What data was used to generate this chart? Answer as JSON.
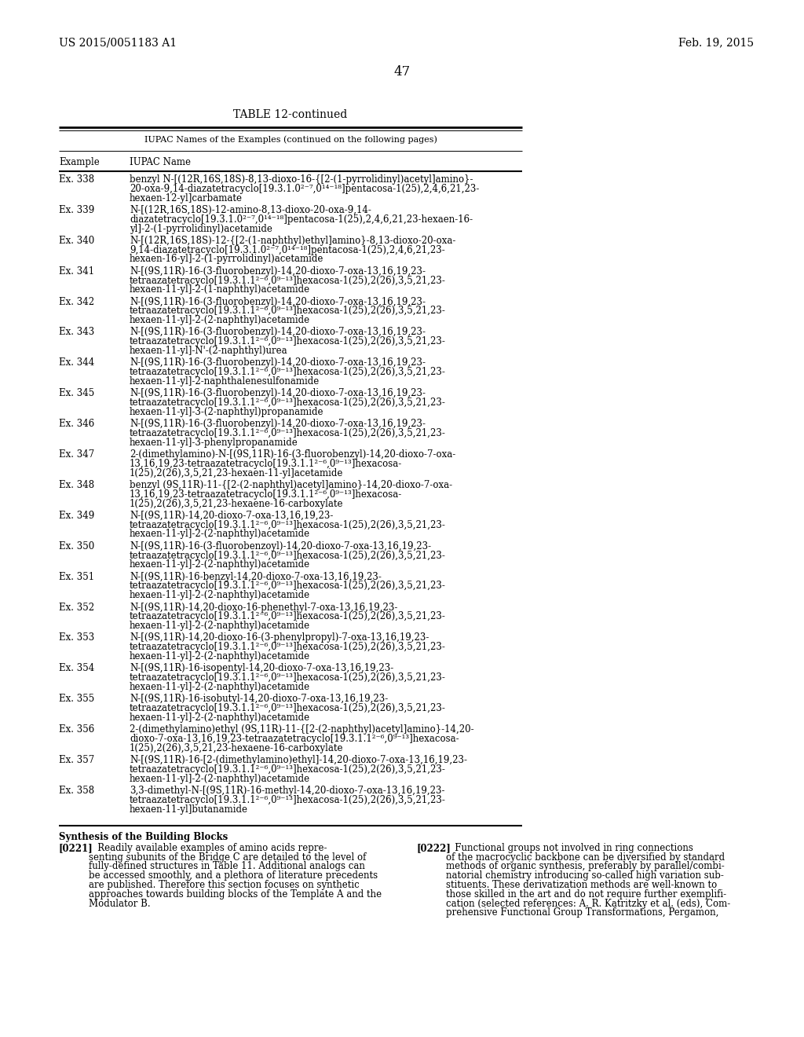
{
  "background_color": "#ffffff",
  "header_left": "US 2015/0051183 A1",
  "header_right": "Feb. 19, 2015",
  "page_number": "47",
  "table_title": "TABLE 12-continued",
  "table_subtitle": "IUPAC Names of the Examples (continued on the following pages)",
  "col1_header": "Example",
  "col2_header": "IUPAC Name",
  "entries": [
    {
      "example": "Ex. 338",
      "lines": [
        "benzyl N-[(12R,16S,18S)-8,13-dioxo-16-{[2-(1-pyrrolidinyl)acetyl]amino}-",
        "20-oxa-9,14-diazatetracyclo[19.3.1.0²⁻⁷,0¹⁴⁻¹⁸]pentacosa-1(25),2,4,6,21,23-",
        "hexaen-12-yl]carbamate"
      ]
    },
    {
      "example": "Ex. 339",
      "lines": [
        "N-[(12R,16S,18S)-12-amino-8,13-dioxo-20-oxa-9,14-",
        "diazatetracyclo[19.3.1.0²⁻⁷,0¹⁴⁻¹⁸]pentacosa-1(25),2,4,6,21,23-hexaen-16-",
        "yl]-2-(1-pyrrolidinyl)acetamide"
      ]
    },
    {
      "example": "Ex. 340",
      "lines": [
        "N-[(12R,16S,18S)-12-{[2-(1-naphthyl)ethyl]amino}-8,13-dioxo-20-oxa-",
        "9,14-diazatetracyclo[19.3.1.0²⁻⁷,0¹⁴⁻¹⁸]pentacosa-1(25),2,4,6,21,23-",
        "hexaen-16-yl]-2-(1-pyrrolidinyl)acetamide"
      ]
    },
    {
      "example": "Ex. 341",
      "lines": [
        "N-[(9S,11R)-16-(3-fluorobenzyl)-14,20-dioxo-7-oxa-13,16,19,23-",
        "tetraazatetracyclo[19.3.1.1²⁻⁶,0⁹⁻¹³]hexacosa-1(25),2(26),3,5,21,23-",
        "hexaen-11-yl]-2-(1-naphthyl)acetamide"
      ]
    },
    {
      "example": "Ex. 342",
      "lines": [
        "N-[(9S,11R)-16-(3-fluorobenzyl)-14,20-dioxo-7-oxa-13,16,19,23-",
        "tetraazatetracyclo[19.3.1.1²⁻⁶,0⁹⁻¹³]hexacosa-1(25),2(26),3,5,21,23-",
        "hexaen-11-yl]-2-(2-naphthyl)acetamide"
      ]
    },
    {
      "example": "Ex. 343",
      "lines": [
        "N-[(9S,11R)-16-(3-fluorobenzyl)-14,20-dioxo-7-oxa-13,16,19,23-",
        "tetraazatetracyclo[19.3.1.1²⁻⁶,0⁹⁻¹³]hexacosa-1(25),2(26),3,5,21,23-",
        "hexaen-11-yl]-N'-(2-naphthyl)urea"
      ]
    },
    {
      "example": "Ex. 344",
      "lines": [
        "N-[(9S,11R)-16-(3-fluorobenzyl)-14,20-dioxo-7-oxa-13,16,19,23-",
        "tetraazatetracyclo[19.3.1.1²⁻⁶,0⁹⁻¹³]hexacosa-1(25),2(26),3,5,21,23-",
        "hexaen-11-yl]-2-naphthalenesulfonamide"
      ]
    },
    {
      "example": "Ex. 345",
      "lines": [
        "N-[(9S,11R)-16-(3-fluorobenzyl)-14,20-dioxo-7-oxa-13,16,19,23-",
        "tetraazatetracyclo[19.3.1.1²⁻⁶,0⁹⁻¹³]hexacosa-1(25),2(26),3,5,21,23-",
        "hexaen-11-yl]-3-(2-naphthyl)propanamide"
      ]
    },
    {
      "example": "Ex. 346",
      "lines": [
        "N-[(9S,11R)-16-(3-fluorobenzyl)-14,20-dioxo-7-oxa-13,16,19,23-",
        "tetraazatetracyclo[19.3.1.1²⁻⁶,0⁹⁻¹³]hexacosa-1(25),2(26),3,5,21,23-",
        "hexaen-11-yl]-3-phenylpropanamide"
      ]
    },
    {
      "example": "Ex. 347",
      "lines": [
        "2-(dimethylamino)-N-[(9S,11R)-16-(3-fluorobenzyl)-14,20-dioxo-7-oxa-",
        "13,16,19,23-tetraazatetracyclo[19.3.1.1²⁻⁶,0⁹⁻¹³]hexacosa-",
        "1(25),2(26),3,5,21,23-hexaen-11-yl]acetamide"
      ]
    },
    {
      "example": "Ex. 348",
      "lines": [
        "benzyl (9S,11R)-11-{[2-(2-naphthyl)acetyl]amino}-14,20-dioxo-7-oxa-",
        "13,16,19,23-tetraazatetracyclo[19.3.1.1²⁻⁶,0⁹⁻¹³]hexacosa-",
        "1(25),2(26),3,5,21,23-hexaene-16-carboxylate"
      ]
    },
    {
      "example": "Ex. 349",
      "lines": [
        "N-[(9S,11R)-14,20-dioxo-7-oxa-13,16,19,23-",
        "tetraazatetracyclo[19.3.1.1²⁻⁶,0⁹⁻¹³]hexacosa-1(25),2(26),3,5,21,23-",
        "hexaen-11-yl]-2-(2-naphthyl)acetamide"
      ]
    },
    {
      "example": "Ex. 350",
      "lines": [
        "N-[(9S,11R)-16-(3-fluorobenzoyl)-14,20-dioxo-7-oxa-13,16,19,23-",
        "tetraazatetracyclo[19.3.1.1²⁻⁶,0⁹⁻¹³]hexacosa-1(25),2(26),3,5,21,23-",
        "hexaen-11-yl]-2-(2-naphthyl)acetamide"
      ]
    },
    {
      "example": "Ex. 351",
      "lines": [
        "N-[(9S,11R)-16-benzyl-14,20-dioxo-7-oxa-13,16,19,23-",
        "tetraazatetracyclo[19.3.1.1²⁻⁶,0⁹⁻¹³]hexacosa-1(25),2(26),3,5,21,23-",
        "hexaen-11-yl]-2-(2-naphthyl)acetamide"
      ]
    },
    {
      "example": "Ex. 352",
      "lines": [
        "N-[(9S,11R)-14,20-dioxo-16-phenethyl-7-oxa-13,16,19,23-",
        "tetraazatetracyclo[19.3.1.1²⁻⁶,0⁹⁻¹³]hexacosa-1(25),2(26),3,5,21,23-",
        "hexaen-11-yl]-2-(2-naphthyl)acetamide"
      ]
    },
    {
      "example": "Ex. 353",
      "lines": [
        "N-[(9S,11R)-14,20-dioxo-16-(3-phenylpropyl)-7-oxa-13,16,19,23-",
        "tetraazatetracyclo[19.3.1.1²⁻⁶,0⁹⁻¹³]hexacosa-1(25),2(26),3,5,21,23-",
        "hexaen-11-yl]-2-(2-naphthyl)acetamide"
      ]
    },
    {
      "example": "Ex. 354",
      "lines": [
        "N-[(9S,11R)-16-isopentyl-14,20-dioxo-7-oxa-13,16,19,23-",
        "tetraazatetracyclo[19.3.1.1²⁻⁶,0⁹⁻¹³]hexacosa-1(25),2(26),3,5,21,23-",
        "hexaen-11-yl]-2-(2-naphthyl)acetamide"
      ]
    },
    {
      "example": "Ex. 355",
      "lines": [
        "N-[(9S,11R)-16-isobutyl-14,20-dioxo-7-oxa-13,16,19,23-",
        "tetraazatetracyclo[19.3.1.1²⁻⁶,0⁹⁻¹³]hexacosa-1(25),2(26),3,5,21,23-",
        "hexaen-11-yl]-2-(2-naphthyl)acetamide"
      ]
    },
    {
      "example": "Ex. 356",
      "lines": [
        "2-(dimethylamino)ethyl (9S,11R)-11-{[2-(2-naphthyl)acetyl]amino}-14,20-",
        "dioxo-7-oxa-13,16,19,23-tetraazatetracyclo[19.3.1.1²⁻⁶,0⁹⁻¹³]hexacosa-",
        "1(25),2(26),3,5,21,23-hexaene-16-carboxylate"
      ]
    },
    {
      "example": "Ex. 357",
      "lines": [
        "N-[(9S,11R)-16-[2-(dimethylamino)ethyl]-14,20-dioxo-7-oxa-13,16,19,23-",
        "tetraazatetracyclo[19.3.1.1²⁻⁶,0⁹⁻¹³]hexacosa-1(25),2(26),3,5,21,23-",
        "hexaen-11-yl]-2-(2-naphthyl)acetamide"
      ]
    },
    {
      "example": "Ex. 358",
      "lines": [
        "3,3-dimethyl-N-[(9S,11R)-16-methyl-14,20-dioxo-7-oxa-13,16,19,23-",
        "tetraazatetracyclo[19.3.1.1²⁻⁶,0⁹⁻¹³]hexacosa-1(25),2(26),3,5,21,23-",
        "hexaen-11-yl]butanamide"
      ]
    }
  ],
  "footer_heading": "Synthesis of the Building Blocks",
  "footer_col1_para_bold": "[0221]",
  "footer_col1_para_text": "   Readily available examples of amino acids repre-\nsenting subunits of the Bridge C are detailed to the level of\nfully-defined structures in Table 11. Additional analogs can\nbe accessed smoothly, and a plethora of literature precedents\nare published. Therefore this section focuses on synthetic\napproaches towards building blocks of the Template A and the\nModulator B.",
  "footer_col2_para_bold": "[0222]",
  "footer_col2_para_text": "   Functional groups not involved in ring connections\nof the macrocyclic backbone can be diversified by standard\nmethods of organic synthesis, preferably by parallel/combi-\nnatorial chemistry introducing so-called high variation sub-\nstituents. These derivatization methods are well-known to\nthose skilled in the art and do not require further exemplifi-\ncation (selected references: A. R. Katritzky et al. (eds), Com-\nprehensive Functional Group Transformations, Pergamon,"
}
